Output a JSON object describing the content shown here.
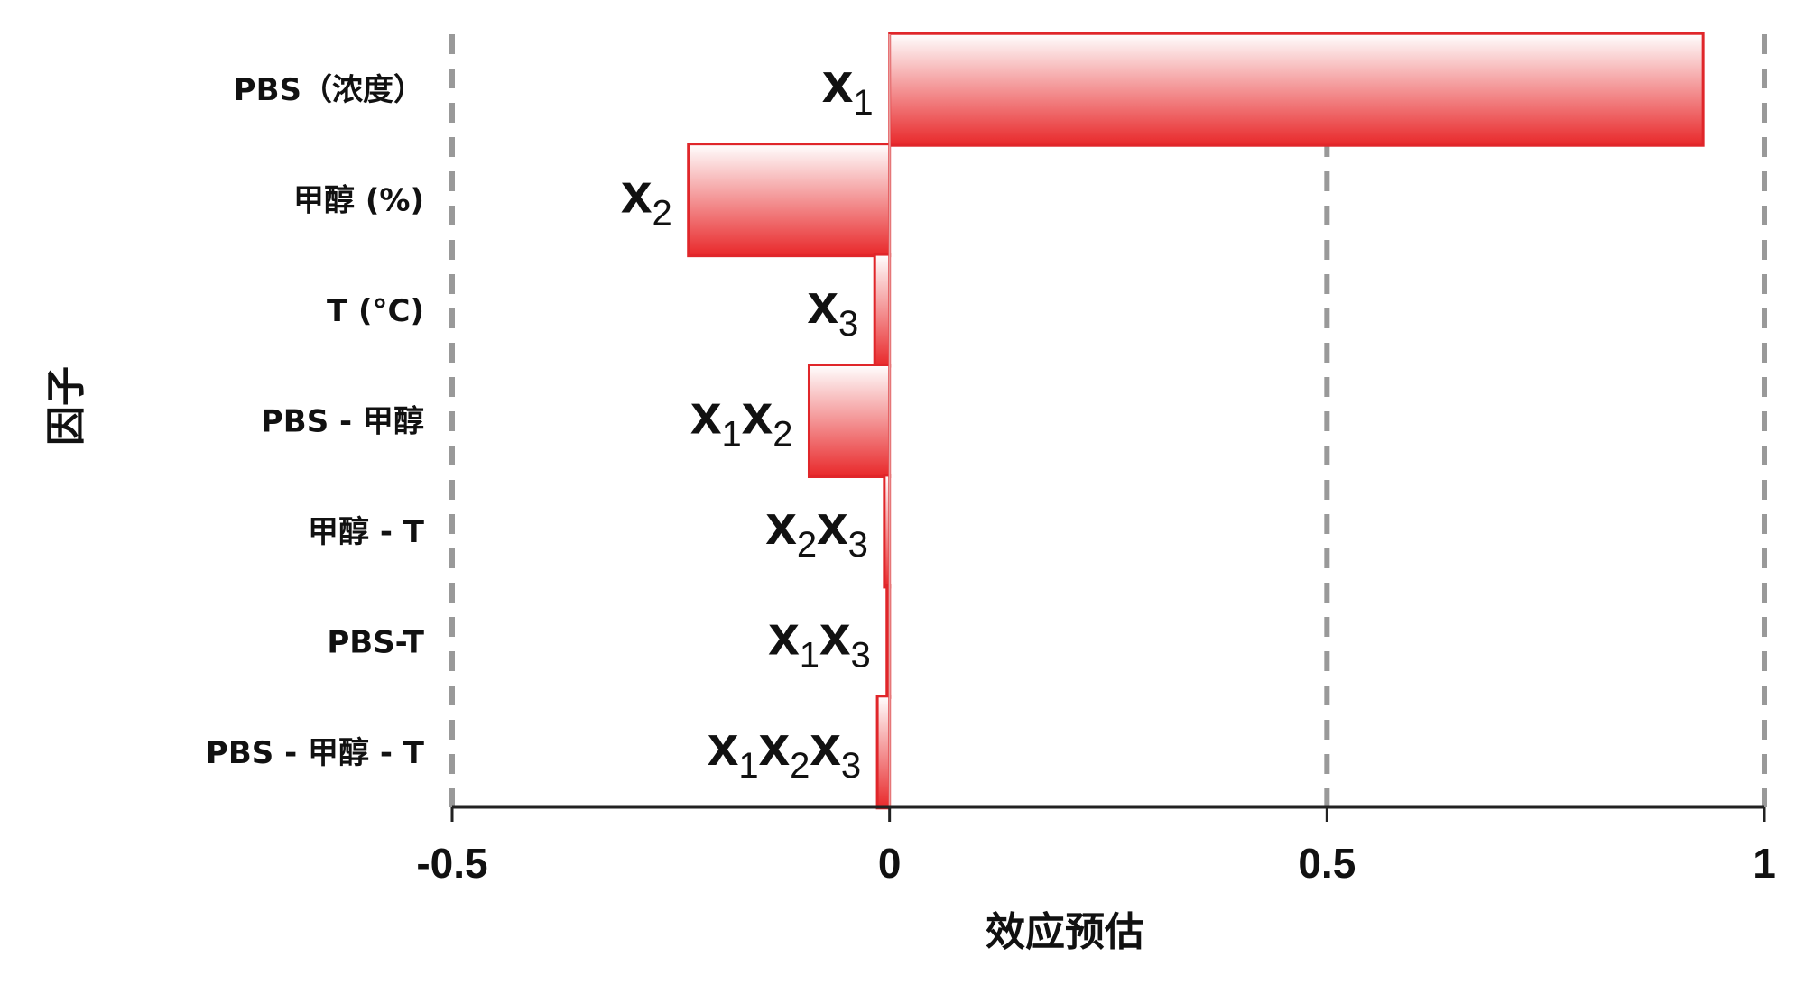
{
  "chart_data": {
    "type": "bar",
    "orientation": "horizontal",
    "xlabel": "效应预估",
    "ylabel": "因子",
    "xlim": [
      -0.5,
      1
    ],
    "xticks": [
      "-0.5",
      "0",
      "0.5",
      "1"
    ],
    "grid": "vertical dashed",
    "categories": [
      "PBS（浓度）",
      "甲醇 (%)",
      "T (°C)",
      "PBS - 甲醇",
      "甲醇 - T",
      "PBS-T",
      "PBS - 甲醇 - T"
    ],
    "bar_labels": [
      [
        {
          "t": "x"
        },
        {
          "t": "1",
          "sub": true
        }
      ],
      [
        {
          "t": "x"
        },
        {
          "t": "2",
          "sub": true
        }
      ],
      [
        {
          "t": "x"
        },
        {
          "t": "3",
          "sub": true
        }
      ],
      [
        {
          "t": "x"
        },
        {
          "t": "1",
          "sub": true
        },
        {
          "t": "x"
        },
        {
          "t": "2",
          "sub": true
        }
      ],
      [
        {
          "t": "x"
        },
        {
          "t": "2",
          "sub": true
        },
        {
          "t": "x"
        },
        {
          "t": "3",
          "sub": true
        }
      ],
      [
        {
          "t": "x"
        },
        {
          "t": "1",
          "sub": true
        },
        {
          "t": "x"
        },
        {
          "t": "3",
          "sub": true
        }
      ],
      [
        {
          "t": "x"
        },
        {
          "t": "1",
          "sub": true
        },
        {
          "t": "x"
        },
        {
          "t": "2",
          "sub": true
        },
        {
          "t": "x"
        },
        {
          "t": "3",
          "sub": true
        }
      ]
    ],
    "values": [
      0.93,
      -0.23,
      -0.017,
      -0.092,
      -0.006,
      -0.003,
      -0.014
    ],
    "colors": {
      "bar_edge": "#e0262a",
      "bar_dark": "#e8282a",
      "bar_light": "#ffffff",
      "grid": "#999999",
      "axis": "#222222"
    }
  }
}
